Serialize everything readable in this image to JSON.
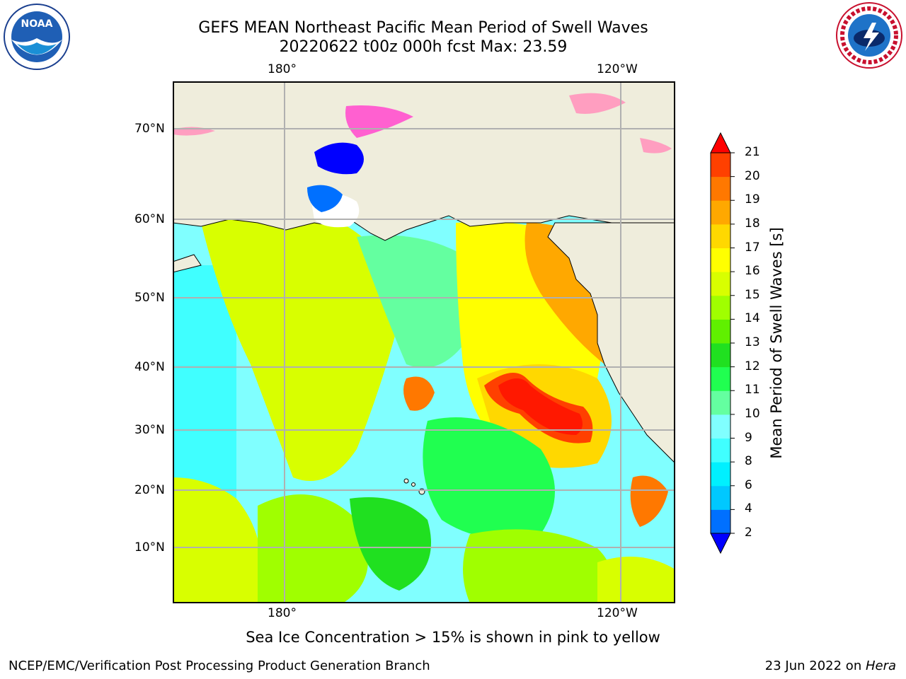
{
  "header": {
    "title_line1": "GEFS MEAN Northeast Pacific Mean Period of Swell Waves",
    "title_line2": "20220622 t00z 000h fcst   Max: 23.59"
  },
  "logos": {
    "left": {
      "name": "noaa-logo",
      "text": "NOAA",
      "ring_text": "NATIONAL OCEANIC AND ATMOSPHERIC ADMINISTRATION · U.S. DEPARTMENT OF COMMERCE"
    },
    "right": {
      "name": "nws-logo",
      "ring_text": "NATIONAL WEATHER SERVICE"
    }
  },
  "map": {
    "top_ticks": [
      "180°",
      "120°W"
    ],
    "bottom_ticks": [
      "180°",
      "120°W"
    ],
    "lat_ticks": [
      "70°N",
      "60°N",
      "50°N",
      "40°N",
      "30°N",
      "20°N",
      "10°N"
    ],
    "land_color": "#efeddc",
    "grid_color": "#b0b0b0"
  },
  "colorbar": {
    "title": "Mean Period of Swell Waves [s]",
    "levels": [
      "2",
      "4",
      "6",
      "8",
      "9",
      "10",
      "11",
      "12",
      "13",
      "14",
      "15",
      "16",
      "17",
      "18",
      "19",
      "20",
      "21"
    ],
    "colors": [
      "#0000ff",
      "#0070ff",
      "#00c8ff",
      "#00f0ff",
      "#40ffff",
      "#80ffff",
      "#64ffa0",
      "#20ff50",
      "#20e020",
      "#60f000",
      "#a0ff00",
      "#d8ff00",
      "#ffff00",
      "#ffd800",
      "#ffa800",
      "#ff7800",
      "#ff4000",
      "#ff1800"
    ],
    "under_color": "#0000ff",
    "over_color": "#ff0000"
  },
  "note": "Sea Ice Concentration > 15% is shown in pink to yellow",
  "footer": {
    "left": "NCEP/EMC/Verification Post Processing Product Generation Branch",
    "right_date": "23 Jun 2022 on ",
    "right_machine": "Hera"
  }
}
